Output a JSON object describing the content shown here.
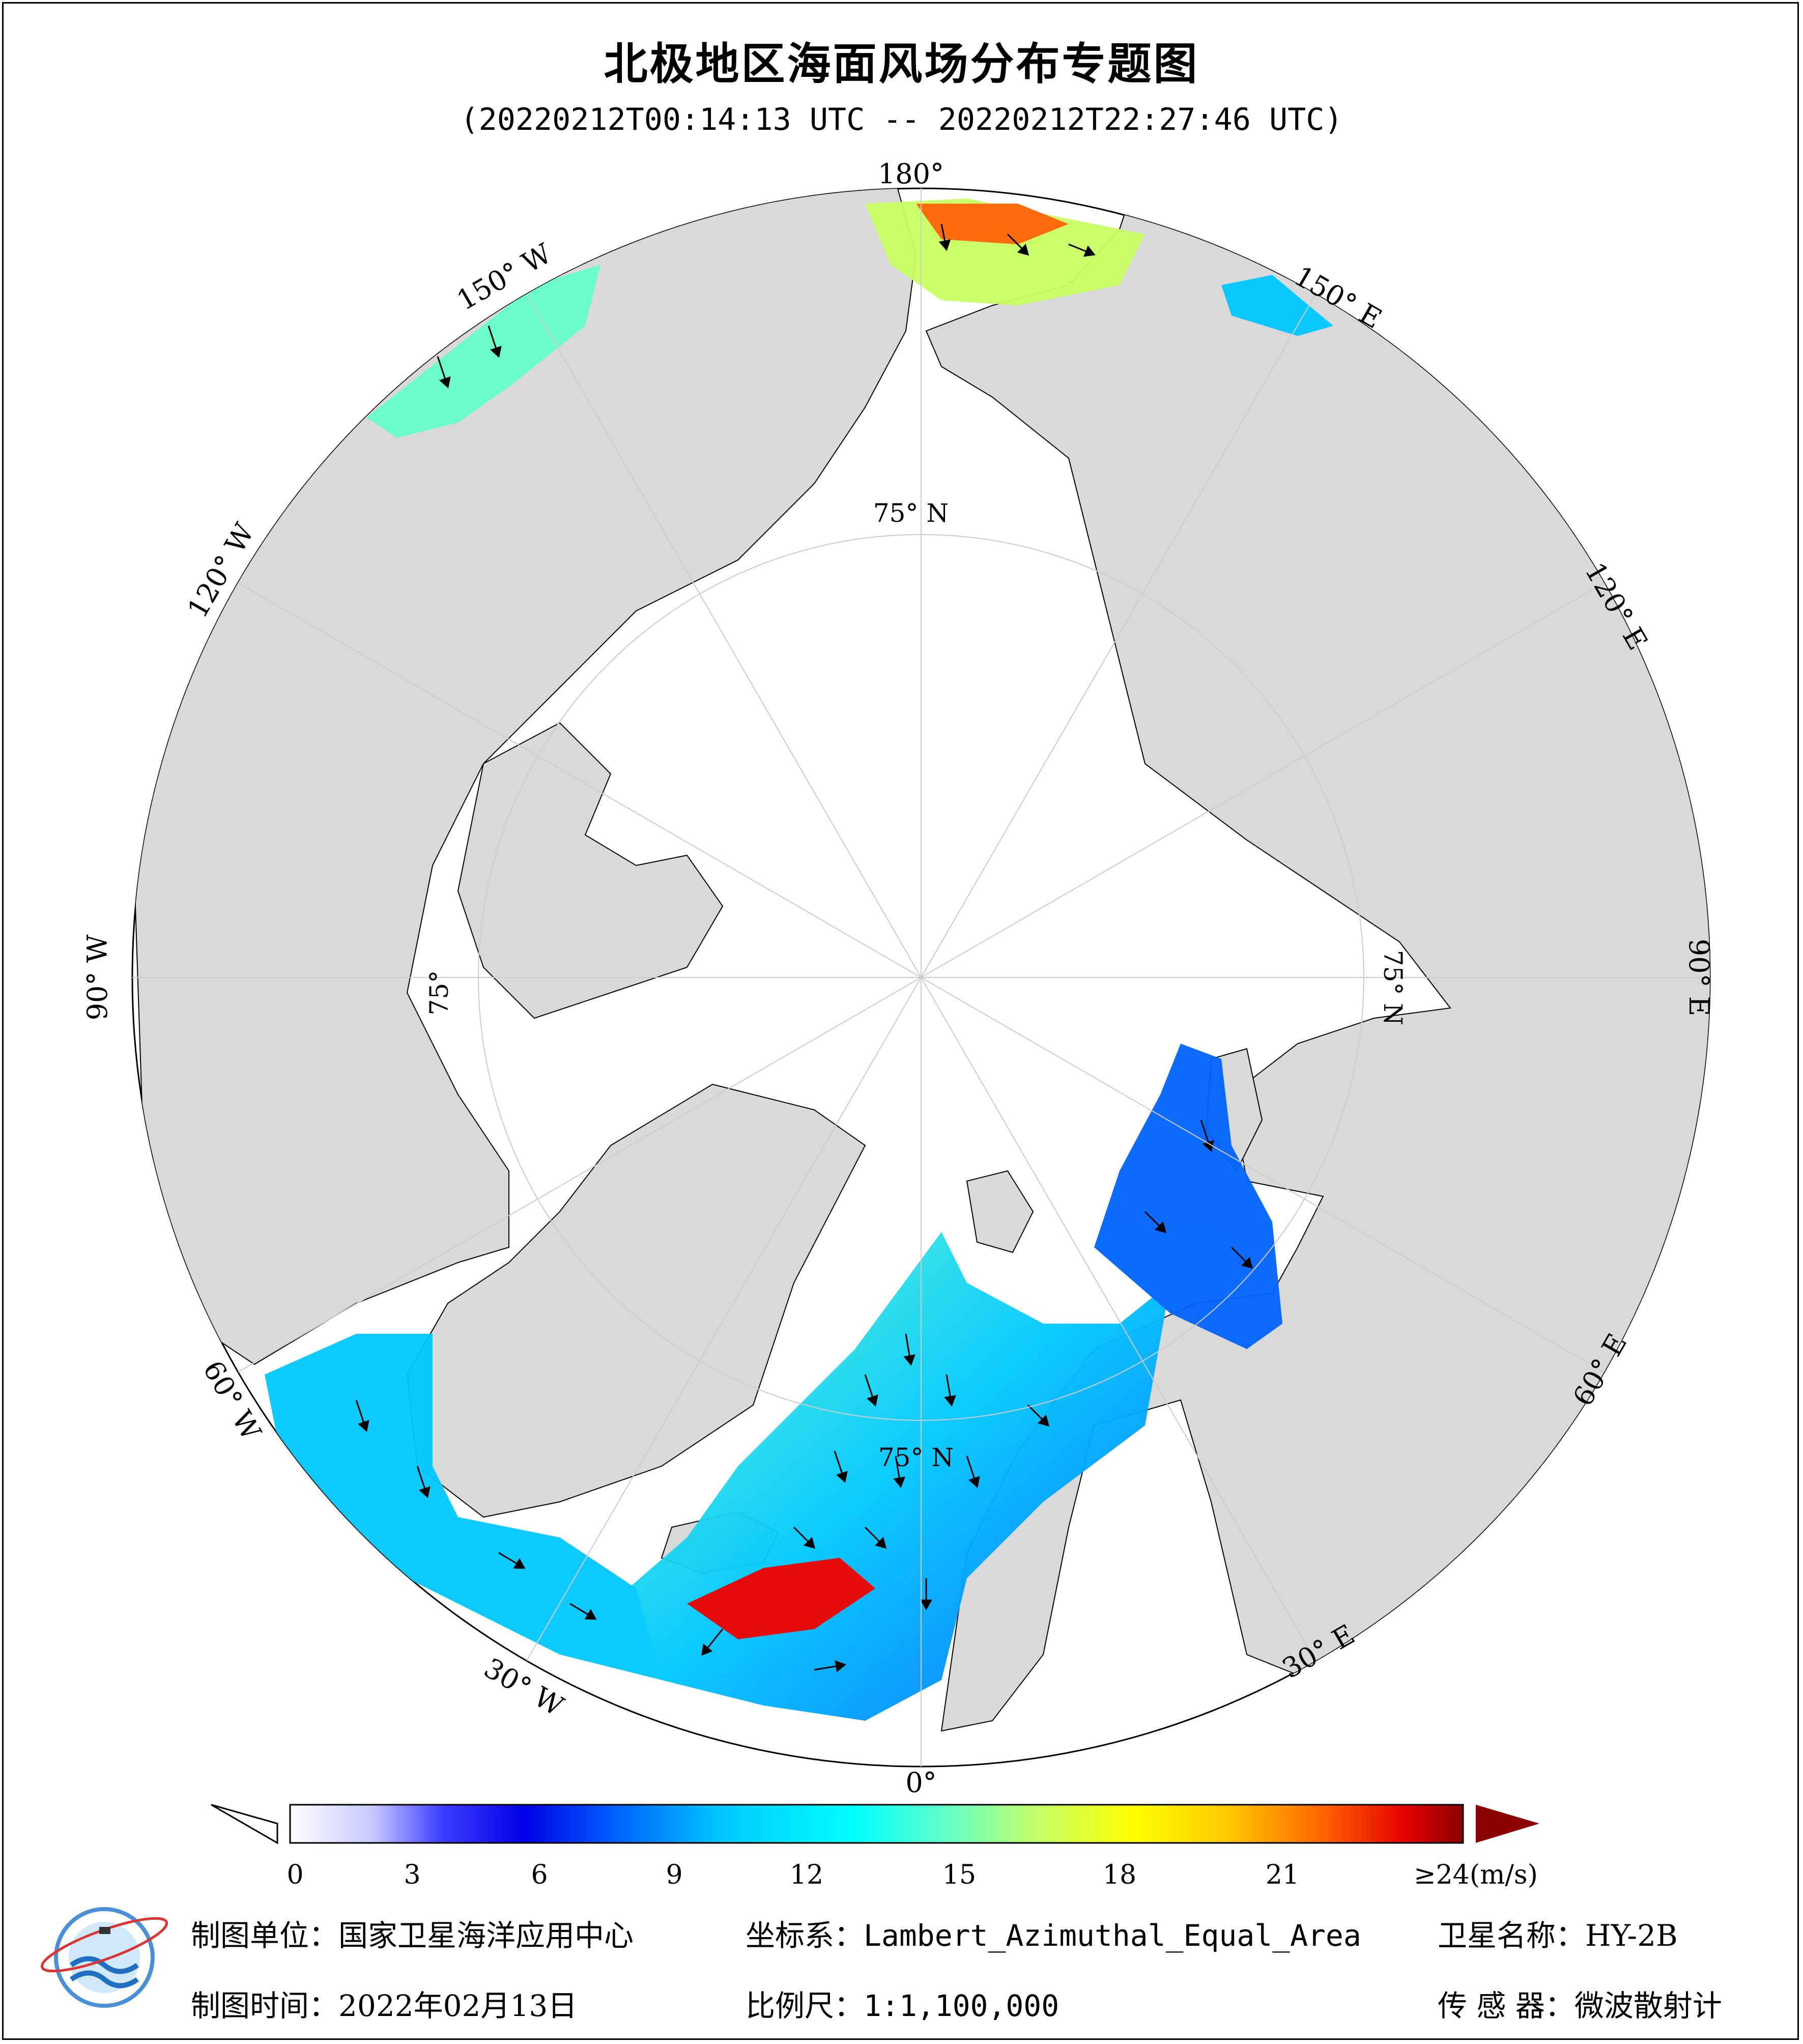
{
  "title": "北极地区海面风场分布专题图",
  "subtitle": "(20220212T00:14:13 UTC -- 20220212T22:27:46 UTC)",
  "map": {
    "projection_center": "North Pole",
    "meridian_labels": {
      "lon_180": "180°",
      "lon_150w": "150° W",
      "lon_120w": "120° W",
      "lon_90w": "90° W",
      "lon_60w": "60° W",
      "lon_30w": "30° W",
      "lon_0": "0°",
      "lon_30e": "30° E",
      "lon_60e": "60° E",
      "lon_90e": "90° E",
      "lon_120e": "120° E",
      "lon_150e": "150° E"
    },
    "parallel_labels": {
      "top": "75° N",
      "left": "75°",
      "right": "75° N",
      "bottom": "75° N"
    },
    "colors": {
      "ocean_ice": "#ffffff",
      "land": "#d9d9d9",
      "coast": "#000000",
      "grid": "#dddddd",
      "wind_arrow": "#000000"
    }
  },
  "colorbar": {
    "unit_label": "≥24(m/s)",
    "ticks": [
      "0",
      "3",
      "6",
      "9",
      "12",
      "15",
      "18",
      "21"
    ],
    "range": [
      0,
      24
    ],
    "stops": [
      "#ffffff",
      "#c8c8ff",
      "#3c3cff",
      "#0000e6",
      "#0064ff",
      "#00c8ff",
      "#00ffff",
      "#64ffc8",
      "#c8ff64",
      "#ffff00",
      "#ffc800",
      "#ff6400",
      "#e60000",
      "#8b0000"
    ],
    "under_color": "#ffffff",
    "over_color": "#8b0000"
  },
  "footer": {
    "org_label": "制图单位：",
    "org_value": "国家卫星海洋应用中心",
    "coord_label": "坐标系：",
    "coord_value": "Lambert_Azimuthal_Equal_Area",
    "satellite_label": "卫星名称：",
    "satellite_value": "HY-2B",
    "time_label": "制图时间：",
    "time_value": "2022年02月13日",
    "scale_label": "比例尺：",
    "scale_value": "1:1,100,000",
    "sensor_label": "传 感 器：",
    "sensor_value": "微波散射计"
  },
  "logo": {
    "name": "nsoas-logo-icon"
  }
}
